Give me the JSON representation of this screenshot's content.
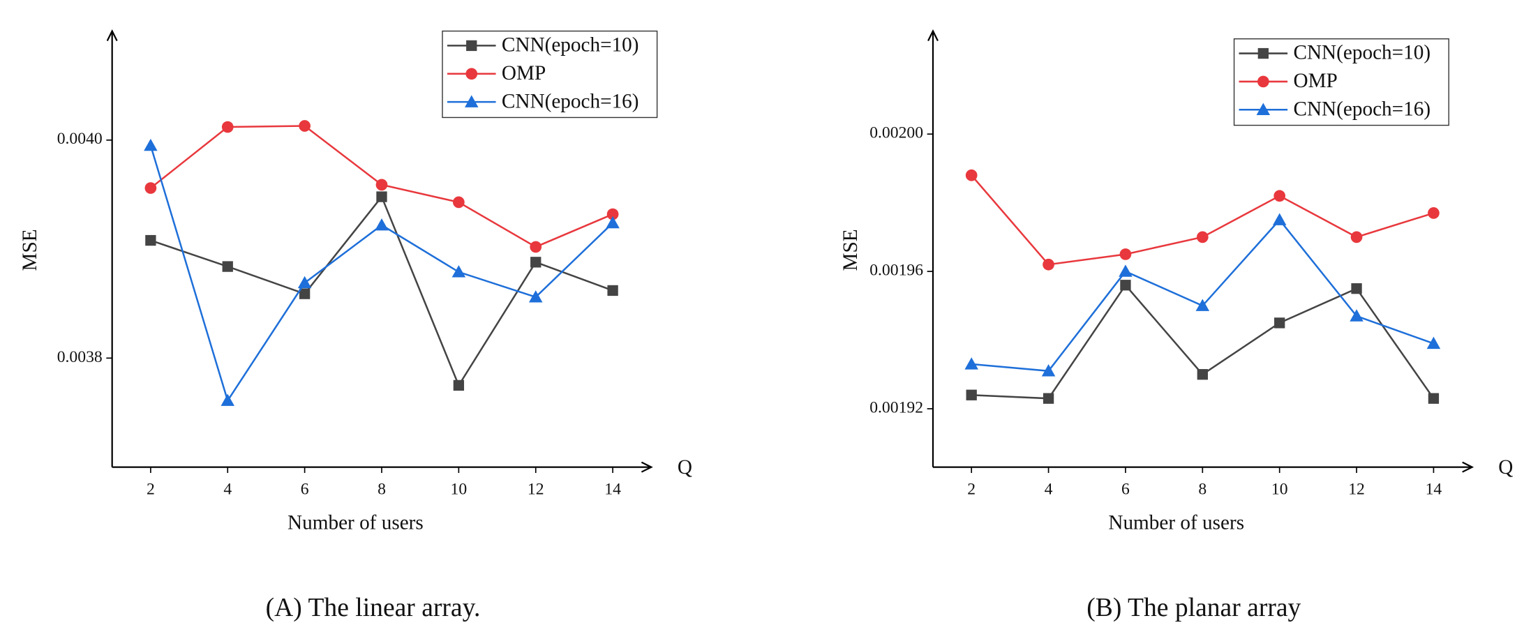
{
  "chart_data": [
    {
      "type": "line",
      "caption": "(A)  The linear array.",
      "x_label": "Number of users",
      "y_label": "MSE",
      "axis_end_label": "Q",
      "x": [
        2,
        4,
        6,
        8,
        10,
        12,
        14
      ],
      "xlim": [
        1,
        15
      ],
      "xticks": [
        2,
        4,
        6,
        8,
        10,
        12,
        14
      ],
      "ylim": [
        0.0037,
        0.0041
      ],
      "yticks": [
        0.0038,
        {
          "value": 0.004,
          "label": "0.0040"
        }
      ],
      "legend": "upper right",
      "series": [
        {
          "name": "CNN(epoch=10)",
          "color": "#444444",
          "marker": "square",
          "values": [
            0.003908,
            0.003884,
            0.003859,
            0.003948,
            0.003775,
            0.003888,
            0.003862
          ]
        },
        {
          "name": "OMP",
          "color": "#e8383d",
          "marker": "circle",
          "values": [
            0.003956,
            0.004012,
            0.004013,
            0.003959,
            0.003943,
            0.003902,
            0.003932
          ]
        },
        {
          "name": "CNN(epoch=16)",
          "color": "#1e6fd9",
          "marker": "triangle",
          "values": [
            0.003995,
            0.003761,
            0.003869,
            0.003922,
            0.003879,
            0.003856,
            0.003924
          ]
        }
      ]
    },
    {
      "type": "line",
      "caption": "(B)  The planar array",
      "x_label": "Number of users",
      "y_label": "MSE",
      "axis_end_label": "Q",
      "x": [
        2,
        4,
        6,
        8,
        10,
        12,
        14
      ],
      "xlim": [
        1,
        15
      ],
      "xticks": [
        2,
        4,
        6,
        8,
        10,
        12,
        14
      ],
      "ylim": [
        0.001903,
        0.00203
      ],
      "yticks": [
        0.00192,
        0.00196,
        {
          "value": 0.002,
          "label": "0.00200"
        }
      ],
      "legend": "upper right",
      "series": [
        {
          "name": "CNN(epoch=10)",
          "color": "#444444",
          "marker": "square",
          "values": [
            0.001924,
            0.001923,
            0.001956,
            0.00193,
            0.001945,
            0.001955,
            0.001923
          ]
        },
        {
          "name": "OMP",
          "color": "#e8383d",
          "marker": "circle",
          "values": [
            0.001988,
            0.001962,
            0.001965,
            0.00197,
            0.001982,
            0.00197,
            0.001977
          ]
        },
        {
          "name": "CNN(epoch=16)",
          "color": "#1e6fd9",
          "marker": "triangle",
          "values": [
            0.001933,
            0.001931,
            0.00196,
            0.00195,
            0.001975,
            0.001947,
            0.001939
          ]
        }
      ]
    }
  ]
}
